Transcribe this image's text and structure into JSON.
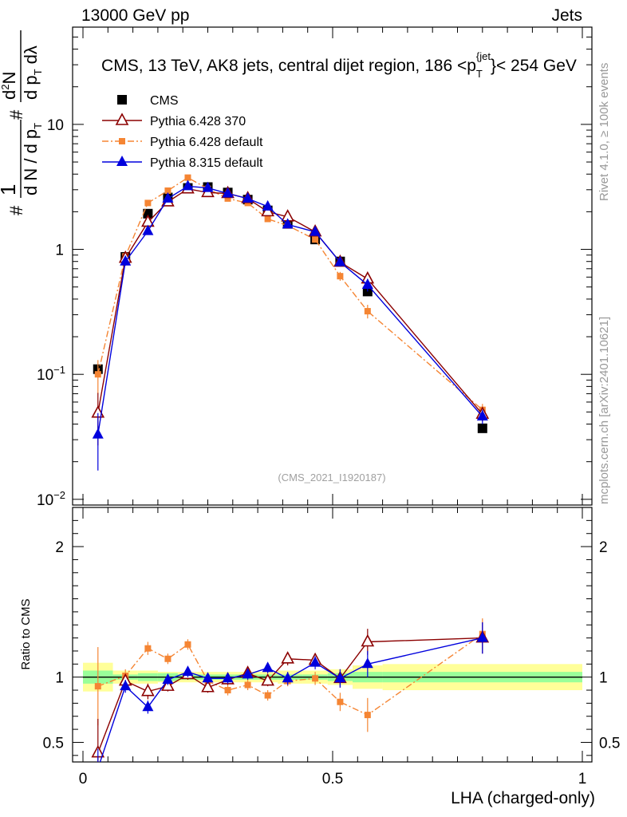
{
  "header": {
    "left": "13000 GeV pp",
    "right": "Jets"
  },
  "side_labels": {
    "rivet": "Rivet 4.1.0, ≥ 100k events",
    "mcplots": "mcplots.cern.ch [arXiv:2401.10621]"
  },
  "chart_data": {
    "type": "scatter",
    "title": "CMS, 13 TeV, AK8 jets, central dijet region, 186 <p_T^{jet}< 254 GeV",
    "title_parts": {
      "main": "CMS, 13 TeV, AK8 jets, central dijet region, 186 <p",
      "sub": "T",
      "sup": "{jet",
      "sup_close": "}",
      "tail": "< 254 GeV"
    },
    "analysis_id": "(CMS_2021_I1920187)",
    "xlabel": "LHA (charged-only)",
    "ylabel_main": "1/N dN/dpT d²N/dpT dλ",
    "ylabel_ratio": "Ratio to CMS",
    "xlim": [
      0,
      1
    ],
    "ylim_main": [
      0.009,
      60
    ],
    "ylim_ratio": [
      0.35,
      2.3
    ],
    "yscale_main": "log",
    "x_ticks": [
      "0",
      "0.5",
      "1"
    ],
    "x_tick_values": [
      0,
      0.5,
      1
    ],
    "y_ticks_main": [
      {
        "value": 0.01,
        "base": "10",
        "exp": "−2"
      },
      {
        "value": 0.1,
        "base": "10",
        "exp": "−1"
      },
      {
        "value": 1,
        "base": "1",
        "exp": ""
      },
      {
        "value": 10,
        "base": "10",
        "exp": ""
      }
    ],
    "y_ticks_ratio": [
      {
        "value": 0.5,
        "label": "0.5"
      },
      {
        "value": 1,
        "label": "1"
      },
      {
        "value": 2,
        "label": "2"
      }
    ],
    "bin_edges": [
      0,
      0.06,
      0.11,
      0.15,
      0.19,
      0.23,
      0.27,
      0.31,
      0.35,
      0.39,
      0.44,
      0.49,
      0.54,
      0.6,
      1.0
    ],
    "x": [
      0.03,
      0.085,
      0.13,
      0.17,
      0.21,
      0.25,
      0.29,
      0.33,
      0.37,
      0.41,
      0.465,
      0.515,
      0.57,
      0.8
    ],
    "band_inner": [
      0.05,
      0.02,
      0.03,
      0.03,
      0.02,
      0.02,
      0.02,
      0.02,
      0.02,
      0.02,
      0.02,
      0.03,
      0.04,
      0.04
    ],
    "band_outer": [
      0.11,
      0.05,
      0.05,
      0.04,
      0.04,
      0.04,
      0.04,
      0.04,
      0.04,
      0.05,
      0.05,
      0.06,
      0.09,
      0.1
    ],
    "legend_position": "top-left",
    "series": [
      {
        "name": "CMS",
        "color": "#000000",
        "marker": "square",
        "line": "none",
        "values": [
          0.11,
          0.87,
          1.93,
          2.6,
          3.1,
          3.15,
          2.85,
          2.5,
          2.05,
          1.6,
          1.2,
          0.8,
          0.46,
          0.037
        ],
        "errors": [
          0.008,
          0.04,
          0.06,
          0.08,
          0.08,
          0.08,
          0.07,
          0.06,
          0.05,
          0.05,
          0.04,
          0.03,
          0.02,
          0.002
        ],
        "ratio": [
          1,
          1,
          1,
          1,
          1,
          1,
          1,
          1,
          1,
          1,
          1,
          1,
          1,
          1
        ],
        "ratio_errors": [
          0,
          0,
          0,
          0,
          0,
          0,
          0,
          0,
          0,
          0,
          0,
          0,
          0,
          0
        ]
      },
      {
        "name": "Pythia 6.428 370",
        "color": "#8b0000",
        "marker": "triangle-open",
        "line": "solid",
        "values": [
          0.049,
          0.85,
          1.65,
          2.4,
          3.05,
          2.85,
          2.8,
          2.55,
          2.0,
          1.82,
          1.38,
          0.79,
          0.58,
          0.048
        ],
        "errors": [
          0.022,
          0.06,
          0.1,
          0.1,
          0.1,
          0.1,
          0.1,
          0.1,
          0.08,
          0.08,
          0.07,
          0.06,
          0.06,
          0.006
        ],
        "ratio": [
          0.42,
          0.97,
          0.89,
          0.93,
          1.02,
          0.92,
          0.98,
          1.03,
          0.97,
          1.14,
          1.13,
          0.99,
          1.27,
          1.3
        ],
        "ratio_errors": [
          0.26,
          0.05,
          0.06,
          0.04,
          0.04,
          0.04,
          0.04,
          0.04,
          0.04,
          0.05,
          0.05,
          0.07,
          0.1,
          0.12
        ]
      },
      {
        "name": "Pythia 6.428 default",
        "color": "#f58533",
        "marker": "square-small",
        "line": "dashdot",
        "values": [
          0.1,
          0.88,
          2.35,
          2.95,
          3.75,
          3.05,
          2.55,
          2.35,
          1.75,
          1.55,
          1.2,
          0.61,
          0.32,
          0.052
        ],
        "errors": [
          0.03,
          0.06,
          0.09,
          0.1,
          0.12,
          0.1,
          0.09,
          0.08,
          0.07,
          0.07,
          0.06,
          0.05,
          0.04,
          0.006
        ],
        "ratio": [
          0.93,
          1.01,
          1.22,
          1.14,
          1.25,
          0.97,
          0.9,
          0.94,
          0.86,
          0.97,
          0.99,
          0.81,
          0.71,
          1.33
        ],
        "ratio_errors": [
          0.3,
          0.05,
          0.05,
          0.04,
          0.04,
          0.04,
          0.04,
          0.04,
          0.04,
          0.04,
          0.05,
          0.07,
          0.13,
          0.12
        ]
      },
      {
        "name": "Pythia 8.315 default",
        "color": "#0000dd",
        "marker": "triangle-filled",
        "line": "solid",
        "values": [
          0.033,
          0.8,
          1.4,
          2.55,
          3.2,
          3.1,
          2.8,
          2.55,
          2.2,
          1.58,
          1.38,
          0.79,
          0.52,
          0.046
        ],
        "errors": [
          0.016,
          0.06,
          0.08,
          0.1,
          0.1,
          0.1,
          0.1,
          0.1,
          0.08,
          0.07,
          0.07,
          0.06,
          0.06,
          0.006
        ],
        "ratio": [
          0.3,
          0.93,
          0.77,
          0.98,
          1.04,
          0.99,
          0.99,
          1.02,
          1.07,
          0.99,
          1.11,
          0.99,
          1.1,
          1.3
        ],
        "ratio_errors": [
          0.15,
          0.05,
          0.05,
          0.04,
          0.04,
          0.04,
          0.04,
          0.04,
          0.04,
          0.05,
          0.05,
          0.07,
          0.1,
          0.12
        ]
      }
    ]
  }
}
